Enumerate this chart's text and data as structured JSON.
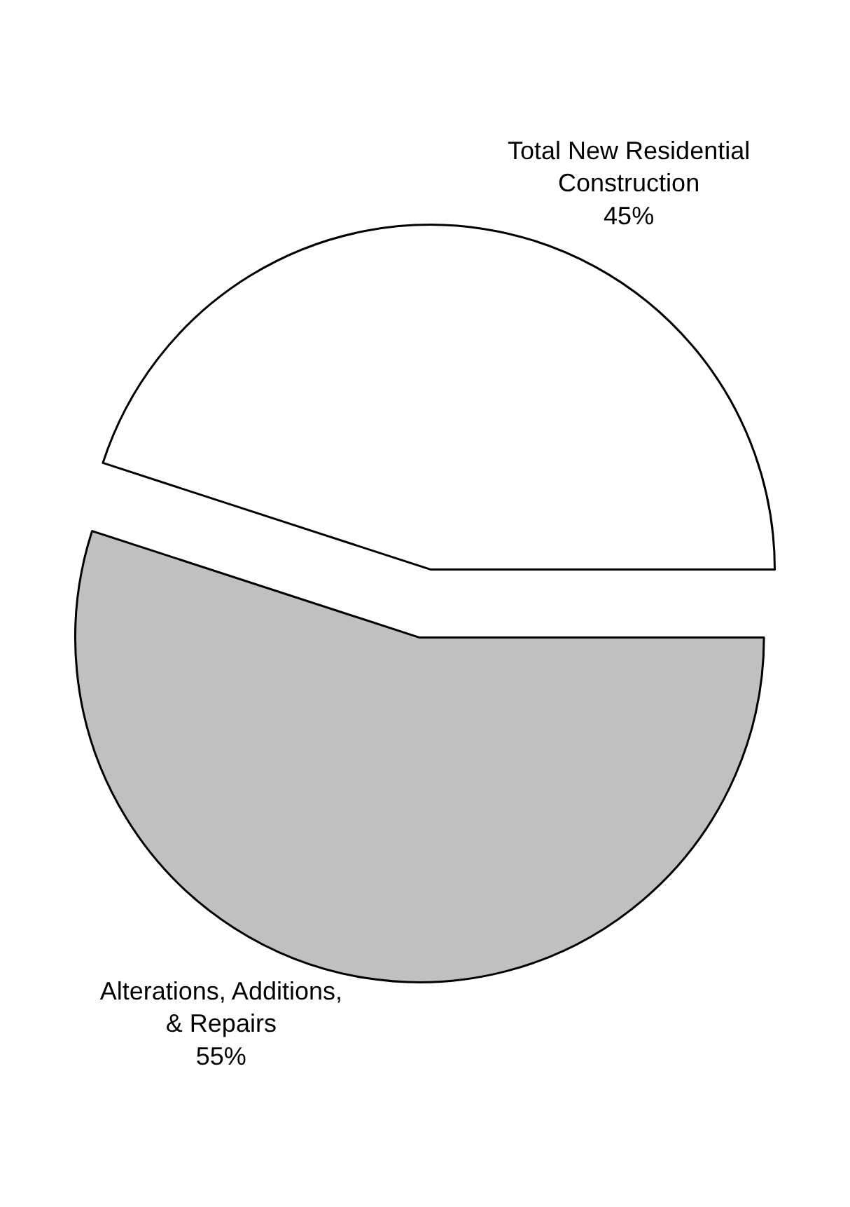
{
  "chart_data": {
    "type": "pie",
    "categories": [
      "Alterations, Additions, & Repairs",
      "Total New Residential Construction"
    ],
    "values": [
      55,
      45
    ],
    "colors": [
      "#c0c0c0",
      "#ffffff"
    ],
    "value_labels": [
      "55%",
      "45%"
    ],
    "legend": false
  }
}
